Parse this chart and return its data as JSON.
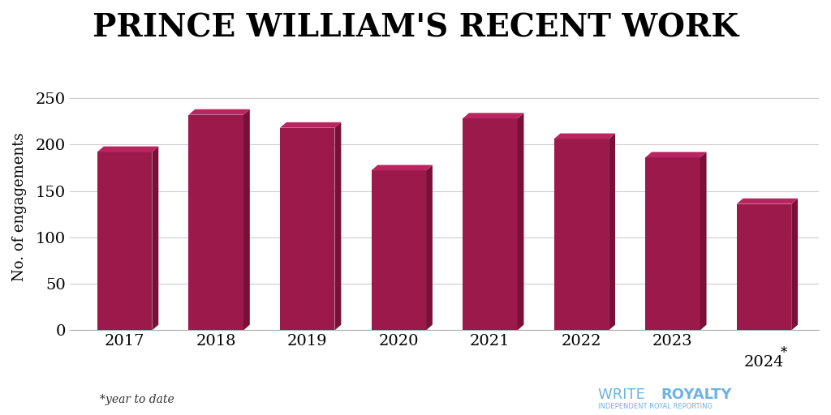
{
  "title": "PRINCE WILLIAM'S RECENT WORK",
  "years": [
    "2017",
    "2018",
    "2019",
    "2020",
    "2021",
    "2022",
    "2023",
    "2024"
  ],
  "values": [
    192,
    232,
    218,
    172,
    228,
    206,
    186,
    136
  ],
  "bar_color": "#9B1A4B",
  "bar_color_right": "#7A1038",
  "bar_color_top": "#B8255F",
  "ylabel": "No. of engagements",
  "ylim": [
    0,
    265
  ],
  "yticks": [
    0,
    50,
    100,
    150,
    200,
    250
  ],
  "footnote": "*year to date",
  "background_color": "#ffffff",
  "title_fontsize": 28,
  "ylabel_fontsize": 13,
  "tick_fontsize": 14,
  "footnote_fontsize": 10,
  "watermark_text_write": "WRITE ",
  "watermark_text_royalty": "ROYALTY",
  "watermark_sub": "INDEPENDENT ROYAL REPORTING",
  "watermark_color": "#6EB3E3"
}
